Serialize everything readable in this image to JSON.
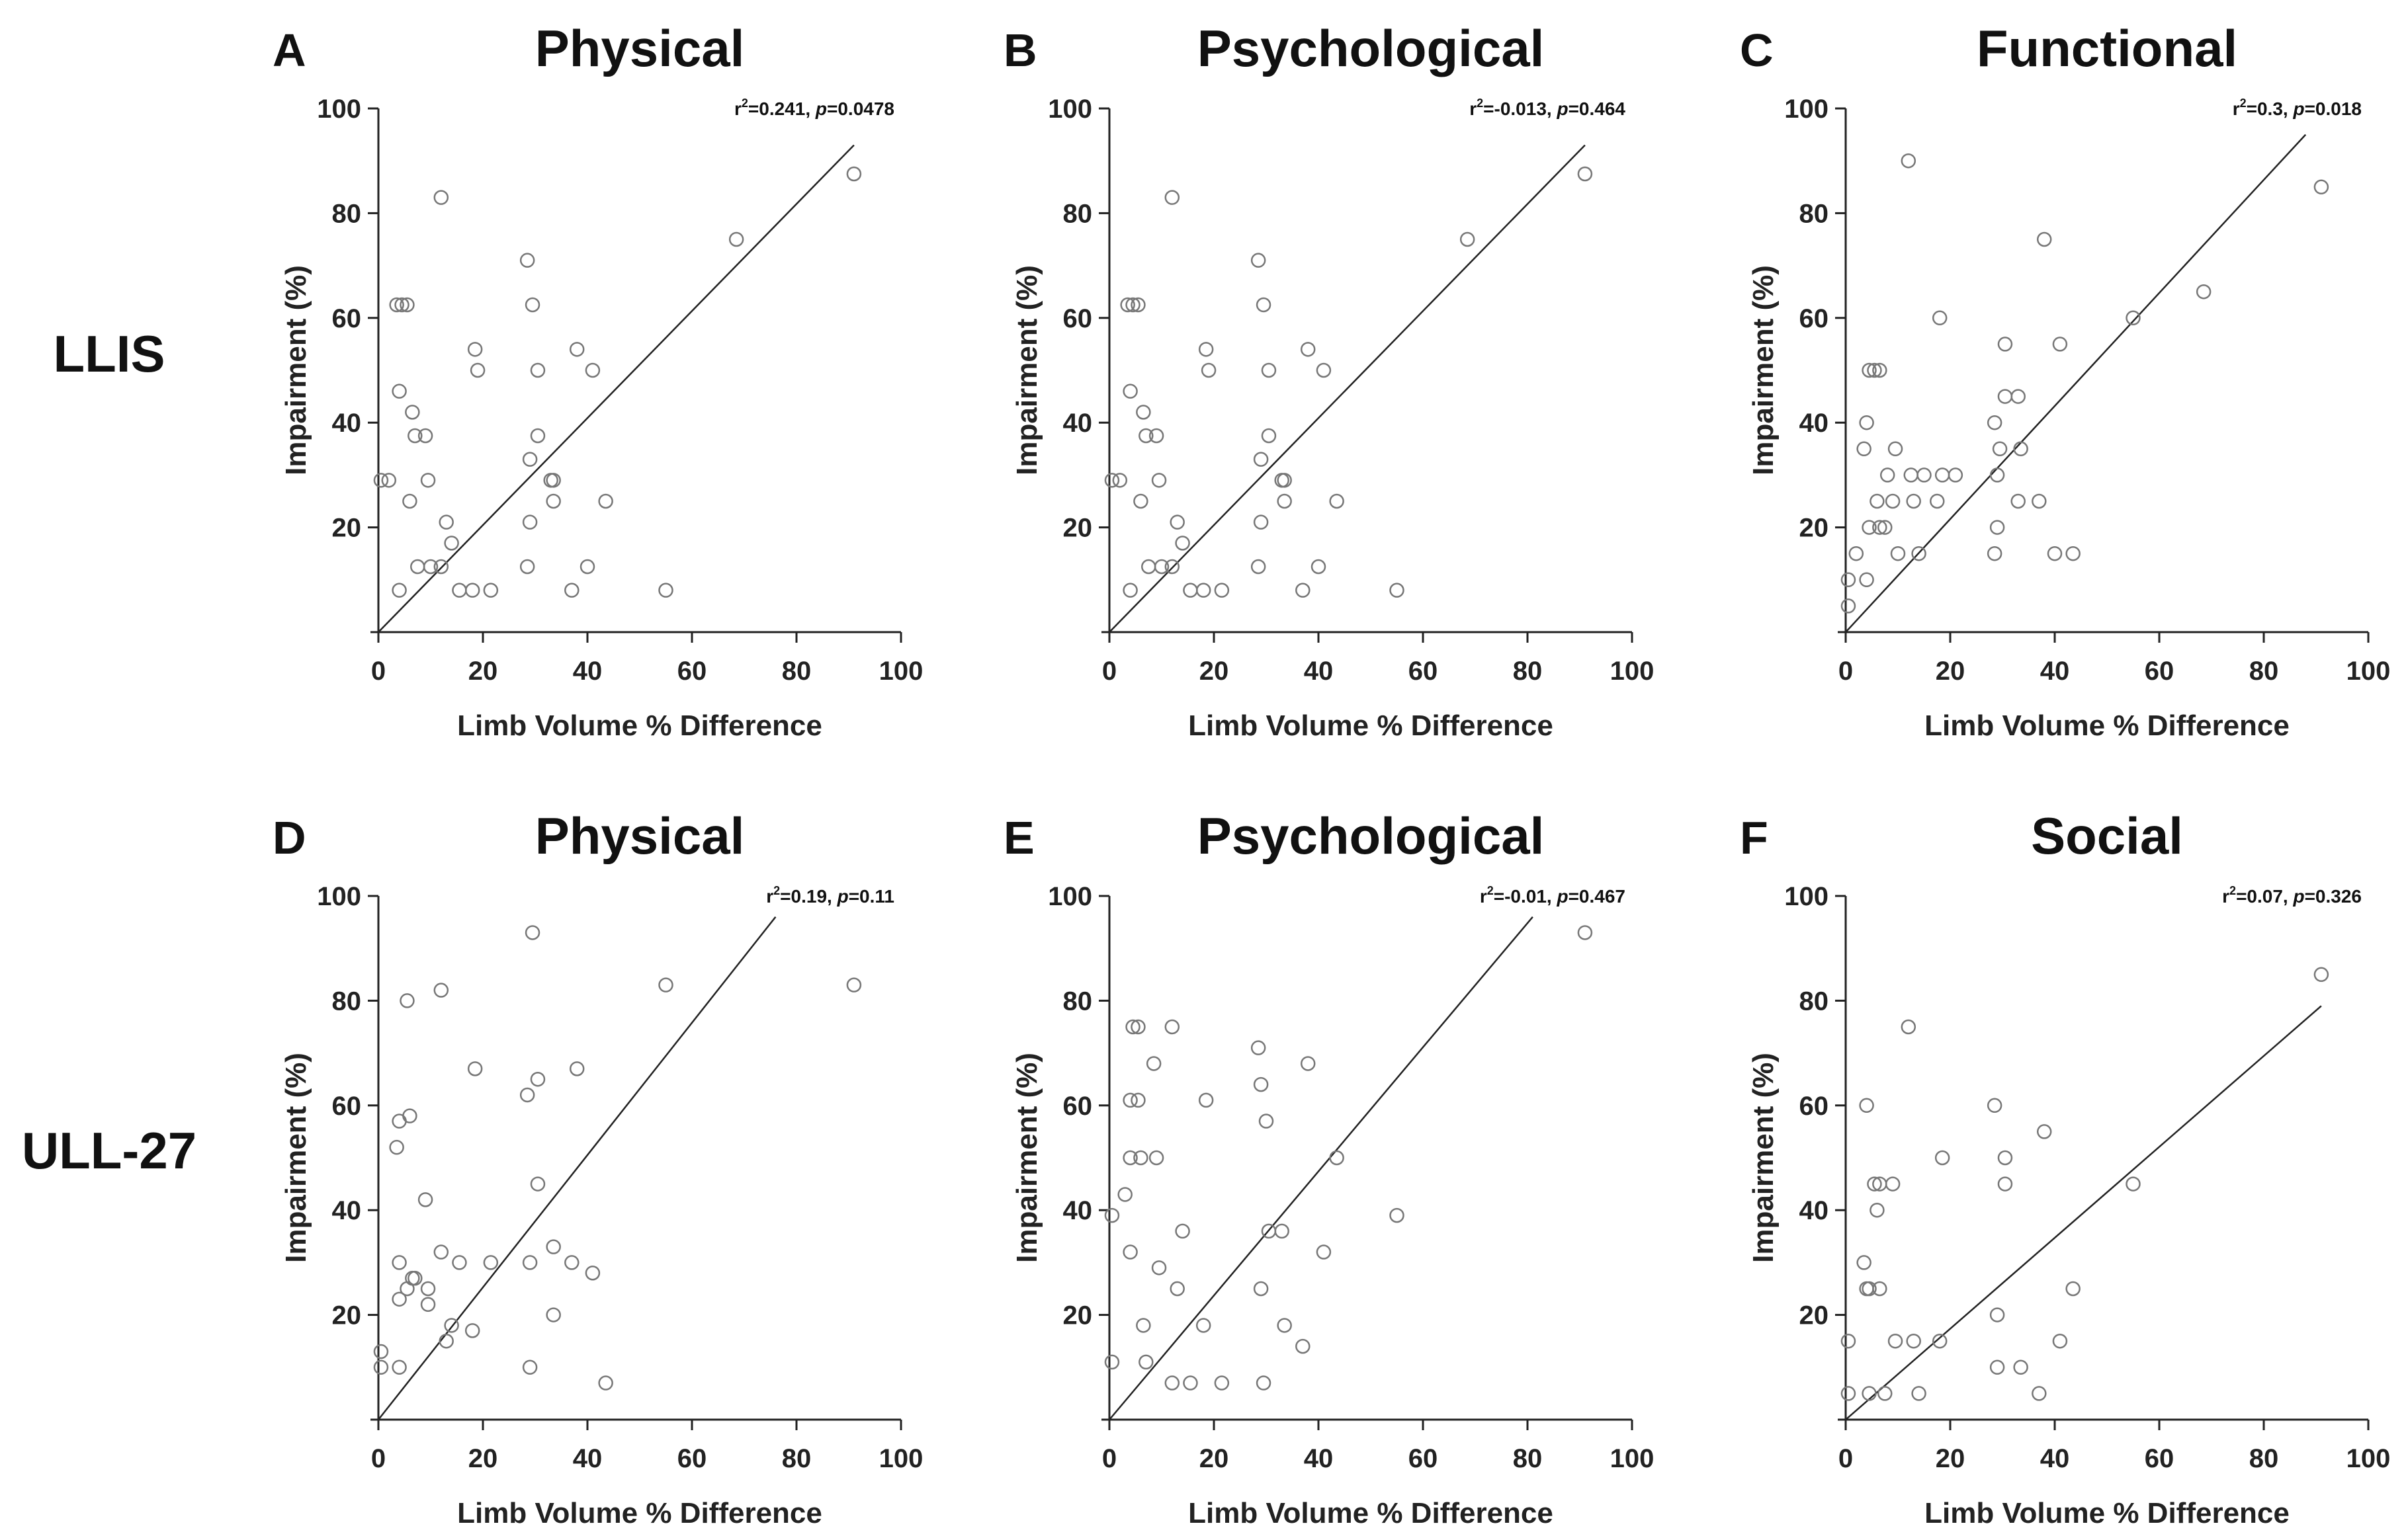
{
  "row_labels": [
    "LLIS",
    "ULL-27"
  ],
  "chart_data": [
    {
      "type": "scatter",
      "panel": "A",
      "title": "Physical",
      "xlabel": "Limb Volume % Difference",
      "ylabel": "Impairment (%)",
      "xlim": [
        0,
        100
      ],
      "ylim": [
        0,
        100
      ],
      "xticks": [
        "0",
        "20",
        "40",
        "60",
        "80",
        "100"
      ],
      "yticks": [
        "20",
        "40",
        "60",
        "80",
        "100"
      ],
      "stat_r2": "0.241",
      "stat_p": "0.0478",
      "fit": [
        [
          0,
          0
        ],
        [
          91,
          93
        ]
      ],
      "points": [
        [
          0.5,
          29
        ],
        [
          2,
          29
        ],
        [
          4,
          8
        ],
        [
          3.5,
          62.5
        ],
        [
          4.5,
          62.5
        ],
        [
          5.5,
          62.5
        ],
        [
          4,
          46
        ],
        [
          6,
          25
        ],
        [
          6.5,
          42
        ],
        [
          7,
          37.5
        ],
        [
          7.5,
          12.5
        ],
        [
          9,
          37.5
        ],
        [
          9.5,
          29
        ],
        [
          10,
          12.5
        ],
        [
          12,
          83
        ],
        [
          12,
          12.5
        ],
        [
          13,
          21
        ],
        [
          14,
          17
        ],
        [
          15.5,
          8
        ],
        [
          18,
          8
        ],
        [
          18.5,
          54
        ],
        [
          19,
          50
        ],
        [
          21.5,
          8
        ],
        [
          28.5,
          71
        ],
        [
          28.5,
          12.5
        ],
        [
          29,
          33
        ],
        [
          29,
          21
        ],
        [
          29.5,
          62.5
        ],
        [
          30.5,
          37.5
        ],
        [
          30.5,
          50
        ],
        [
          33,
          29
        ],
        [
          33.5,
          29
        ],
        [
          33.5,
          25
        ],
        [
          37,
          8
        ],
        [
          38,
          54
        ],
        [
          40,
          12.5
        ],
        [
          41,
          50
        ],
        [
          43.5,
          25
        ],
        [
          55,
          8
        ],
        [
          68.5,
          75
        ],
        [
          91,
          87.5
        ]
      ]
    },
    {
      "type": "scatter",
      "panel": "B",
      "title": "Psychological",
      "xlabel": "Limb Volume % Difference",
      "ylabel": "Impairment (%)",
      "xlim": [
        0,
        100
      ],
      "ylim": [
        0,
        100
      ],
      "xticks": [
        "0",
        "20",
        "40",
        "60",
        "80",
        "100"
      ],
      "yticks": [
        "20",
        "40",
        "60",
        "80",
        "100"
      ],
      "stat_r2": "-0.013",
      "stat_p": "0.464",
      "fit": [
        [
          0,
          0
        ],
        [
          91,
          93
        ]
      ],
      "points": [
        [
          0.5,
          29
        ],
        [
          2,
          29
        ],
        [
          4,
          8
        ],
        [
          3.5,
          62.5
        ],
        [
          4.5,
          62.5
        ],
        [
          5.5,
          62.5
        ],
        [
          4,
          46
        ],
        [
          6,
          25
        ],
        [
          6.5,
          42
        ],
        [
          7,
          37.5
        ],
        [
          7.5,
          12.5
        ],
        [
          9,
          37.5
        ],
        [
          9.5,
          29
        ],
        [
          10,
          12.5
        ],
        [
          12,
          83
        ],
        [
          12,
          12.5
        ],
        [
          13,
          21
        ],
        [
          14,
          17
        ],
        [
          15.5,
          8
        ],
        [
          18,
          8
        ],
        [
          18.5,
          54
        ],
        [
          19,
          50
        ],
        [
          21.5,
          8
        ],
        [
          28.5,
          71
        ],
        [
          28.5,
          12.5
        ],
        [
          29,
          33
        ],
        [
          29,
          21
        ],
        [
          29.5,
          62.5
        ],
        [
          30.5,
          37.5
        ],
        [
          30.5,
          50
        ],
        [
          33,
          29
        ],
        [
          33.5,
          29
        ],
        [
          33.5,
          25
        ],
        [
          37,
          8
        ],
        [
          38,
          54
        ],
        [
          40,
          12.5
        ],
        [
          41,
          50
        ],
        [
          43.5,
          25
        ],
        [
          55,
          8
        ],
        [
          68.5,
          75
        ],
        [
          91,
          87.5
        ]
      ]
    },
    {
      "type": "scatter",
      "panel": "C",
      "title": "Functional",
      "xlabel": "Limb Volume % Difference",
      "ylabel": "Impairment (%)",
      "xlim": [
        0,
        100
      ],
      "ylim": [
        0,
        100
      ],
      "xticks": [
        "0",
        "20",
        "40",
        "60",
        "80",
        "100"
      ],
      "yticks": [
        "20",
        "40",
        "60",
        "80",
        "100"
      ],
      "stat_r2": "0.3",
      "stat_p": "0.018",
      "fit": [
        [
          0,
          0
        ],
        [
          88,
          95
        ]
      ],
      "points": [
        [
          0.5,
          5
        ],
        [
          0.5,
          10
        ],
        [
          2,
          15
        ],
        [
          3.5,
          35
        ],
        [
          4,
          40
        ],
        [
          4,
          10
        ],
        [
          4.5,
          20
        ],
        [
          4.5,
          50
        ],
        [
          5.5,
          50
        ],
        [
          6.5,
          50
        ],
        [
          6,
          25
        ],
        [
          6.5,
          20
        ],
        [
          7.5,
          20
        ],
        [
          8,
          30
        ],
        [
          9,
          25
        ],
        [
          9.5,
          35
        ],
        [
          10,
          15
        ],
        [
          12,
          90
        ],
        [
          12.5,
          30
        ],
        [
          13,
          25
        ],
        [
          14,
          15
        ],
        [
          15,
          30
        ],
        [
          17.5,
          25
        ],
        [
          18,
          60
        ],
        [
          18.5,
          30
        ],
        [
          21,
          30
        ],
        [
          28.5,
          15
        ],
        [
          28.5,
          40
        ],
        [
          29,
          20
        ],
        [
          29,
          30
        ],
        [
          29.5,
          35
        ],
        [
          30.5,
          55
        ],
        [
          30.5,
          45
        ],
        [
          33,
          25
        ],
        [
          33,
          45
        ],
        [
          33.5,
          35
        ],
        [
          37,
          25
        ],
        [
          38,
          75
        ],
        [
          40,
          15
        ],
        [
          41,
          55
        ],
        [
          43.5,
          15
        ],
        [
          55,
          60
        ],
        [
          68.5,
          65
        ],
        [
          91,
          85
        ]
      ]
    },
    {
      "type": "scatter",
      "panel": "D",
      "title": "Physical",
      "xlabel": "Limb Volume % Difference",
      "ylabel": "Impairment (%)",
      "xlim": [
        0,
        100
      ],
      "ylim": [
        0,
        100
      ],
      "xticks": [
        "0",
        "20",
        "40",
        "60",
        "80",
        "100"
      ],
      "yticks": [
        "20",
        "40",
        "60",
        "80",
        "100"
      ],
      "stat_r2": "0.19",
      "stat_p": "0.11",
      "fit": [
        [
          0,
          0
        ],
        [
          76,
          96
        ]
      ],
      "points": [
        [
          0.5,
          13
        ],
        [
          0.5,
          10
        ],
        [
          3.5,
          52
        ],
        [
          4,
          30
        ],
        [
          4,
          57
        ],
        [
          4,
          23
        ],
        [
          4,
          10
        ],
        [
          5.5,
          80
        ],
        [
          5.5,
          25
        ],
        [
          6,
          58
        ],
        [
          6.5,
          27
        ],
        [
          7,
          27
        ],
        [
          9,
          42
        ],
        [
          9.5,
          25
        ],
        [
          9.5,
          22
        ],
        [
          12,
          82
        ],
        [
          12,
          32
        ],
        [
          13,
          15
        ],
        [
          14,
          18
        ],
        [
          15.5,
          30
        ],
        [
          18,
          17
        ],
        [
          18.5,
          67
        ],
        [
          21.5,
          30
        ],
        [
          28.5,
          62
        ],
        [
          29,
          30
        ],
        [
          29,
          10
        ],
        [
          29.5,
          93
        ],
        [
          30.5,
          65
        ],
        [
          30.5,
          45
        ],
        [
          33.5,
          33
        ],
        [
          33.5,
          20
        ],
        [
          37,
          30
        ],
        [
          38,
          67
        ],
        [
          41,
          28
        ],
        [
          43.5,
          7
        ],
        [
          55,
          83
        ],
        [
          91,
          83
        ]
      ]
    },
    {
      "type": "scatter",
      "panel": "E",
      "title": "Psychological",
      "xlabel": "Limb Volume % Difference",
      "ylabel": "Impairment (%)",
      "xlim": [
        0,
        100
      ],
      "ylim": [
        0,
        100
      ],
      "xticks": [
        "0",
        "20",
        "40",
        "60",
        "80",
        "100"
      ],
      "yticks": [
        "20",
        "40",
        "60",
        "80",
        "100"
      ],
      "stat_r2": "-0.01",
      "stat_p": "0.467",
      "fit": [
        [
          0,
          0
        ],
        [
          81,
          96
        ]
      ],
      "points": [
        [
          0.5,
          39
        ],
        [
          0.5,
          11
        ],
        [
          3,
          43
        ],
        [
          4,
          61
        ],
        [
          4,
          50
        ],
        [
          4,
          32
        ],
        [
          4.5,
          75
        ],
        [
          5.5,
          75
        ],
        [
          5.5,
          61
        ],
        [
          6,
          50
        ],
        [
          6.5,
          18
        ],
        [
          7,
          11
        ],
        [
          8.5,
          68
        ],
        [
          9,
          50
        ],
        [
          9.5,
          29
        ],
        [
          12,
          75
        ],
        [
          12,
          7
        ],
        [
          13,
          25
        ],
        [
          14,
          36
        ],
        [
          15.5,
          7
        ],
        [
          18,
          18
        ],
        [
          18.5,
          61
        ],
        [
          21.5,
          7
        ],
        [
          28.5,
          71
        ],
        [
          29,
          64
        ],
        [
          29,
          25
        ],
        [
          29.5,
          7
        ],
        [
          30,
          57
        ],
        [
          30.5,
          36
        ],
        [
          33,
          36
        ],
        [
          33.5,
          18
        ],
        [
          37,
          14
        ],
        [
          38,
          68
        ],
        [
          41,
          32
        ],
        [
          43.5,
          50
        ],
        [
          55,
          39
        ],
        [
          91,
          93
        ]
      ]
    },
    {
      "type": "scatter",
      "panel": "F",
      "title": "Social",
      "xlabel": "Limb Volume % Difference",
      "ylabel": "Impairment (%)",
      "xlim": [
        0,
        100
      ],
      "ylim": [
        0,
        100
      ],
      "xticks": [
        "0",
        "20",
        "40",
        "60",
        "80",
        "100"
      ],
      "yticks": [
        "20",
        "40",
        "60",
        "80",
        "100"
      ],
      "stat_r2": "0.07",
      "stat_p": "0.326",
      "fit": [
        [
          0,
          0
        ],
        [
          91,
          79
        ]
      ],
      "points": [
        [
          0.5,
          15
        ],
        [
          0.5,
          5
        ],
        [
          3.5,
          30
        ],
        [
          4,
          25
        ],
        [
          4.5,
          25
        ],
        [
          4,
          60
        ],
        [
          4.5,
          5
        ],
        [
          5.5,
          45
        ],
        [
          6,
          40
        ],
        [
          6.5,
          45
        ],
        [
          6.5,
          25
        ],
        [
          7.5,
          5
        ],
        [
          9,
          45
        ],
        [
          9.5,
          15
        ],
        [
          12,
          75
        ],
        [
          13,
          15
        ],
        [
          14,
          5
        ],
        [
          18,
          15
        ],
        [
          18.5,
          50
        ],
        [
          28.5,
          60
        ],
        [
          29,
          10
        ],
        [
          29,
          20
        ],
        [
          30.5,
          50
        ],
        [
          30.5,
          45
        ],
        [
          33.5,
          10
        ],
        [
          37,
          5
        ],
        [
          38,
          55
        ],
        [
          41,
          15
        ],
        [
          43.5,
          25
        ],
        [
          55,
          45
        ],
        [
          91,
          85
        ]
      ]
    }
  ]
}
